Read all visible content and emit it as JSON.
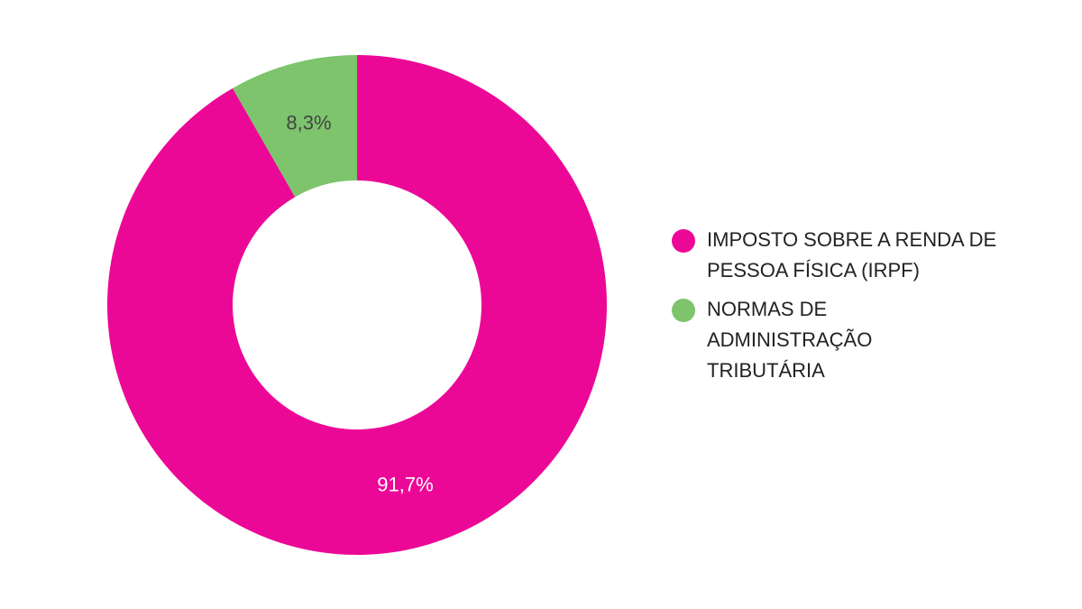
{
  "chart_data": {
    "type": "pie",
    "donut": true,
    "title": "",
    "legend_position": "right",
    "slices": [
      {
        "label": "IMPOSTO SOBRE A RENDA DE PESSOA FÍSICA (IRPF)",
        "value": 91.7,
        "value_label": "91,7%",
        "color": "#EC0896",
        "label_color": "#ffffff"
      },
      {
        "label": "NORMAS DE ADMINISTRAÇÃO TRIBUTÁRIA",
        "value": 8.3,
        "value_label": "8,3%",
        "color": "#7DC46D",
        "label_color": "#444444"
      }
    ]
  }
}
